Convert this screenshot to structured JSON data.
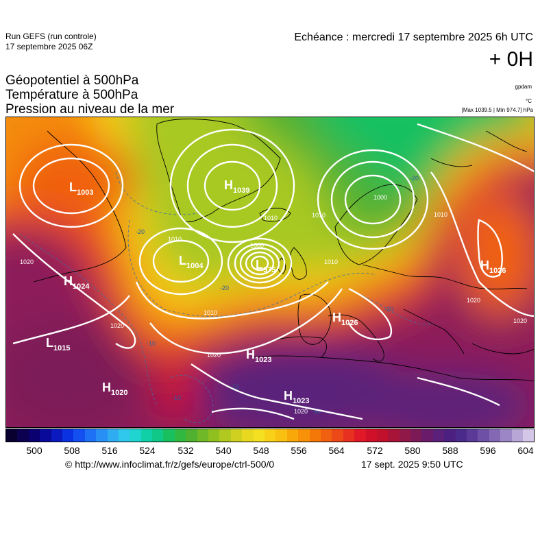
{
  "header": {
    "run_name": "Run GEFS (run controle)",
    "run_date": "17 septembre 2025 06Z",
    "echeance": "Echéance : mercredi 17 septembre 2025 6h UTC",
    "offset": "+ 0H"
  },
  "titles": {
    "line1": "Géopotentiel à 500hPa",
    "line2": "Température à 500hPa",
    "line3": "Pression au niveau de la mer"
  },
  "units": {
    "geopotential": "gpdam",
    "temperature": "°C",
    "maxmin": "[Max 1039.5 | Min 974.7] hPa"
  },
  "map": {
    "pressure_systems": [
      {
        "type": "L",
        "value": "1003"
      },
      {
        "type": "H",
        "value": "1039"
      },
      {
        "type": "L",
        "value": "1004"
      },
      {
        "type": "L",
        "value": "975"
      },
      {
        "type": "H",
        "value": "1024"
      },
      {
        "type": "L",
        "value": "1015"
      },
      {
        "type": "H",
        "value": "1023"
      },
      {
        "type": "H",
        "value": "1020"
      },
      {
        "type": "H",
        "value": "1023"
      },
      {
        "type": "H",
        "value": "1026"
      },
      {
        "type": "H",
        "value": "1026"
      }
    ],
    "isobar_labels": [
      "1010",
      "1000",
      "1010",
      "1020",
      "1020",
      "1010",
      "1010",
      "1020",
      "1010",
      "1020",
      "1020",
      "1010",
      "1000",
      "1020"
    ],
    "temperature_labels": [
      "-20",
      "-20",
      "-20",
      "-20",
      "-10",
      "-10",
      "-10",
      "-10"
    ]
  },
  "colorbar": {
    "colors": [
      "#0a0030",
      "#0c0050",
      "#0a0070",
      "#0a0a9a",
      "#0a1abe",
      "#0a32e0",
      "#1450f0",
      "#1e70f4",
      "#2890f4",
      "#30acf0",
      "#30c8ec",
      "#20d4d0",
      "#10d0a8",
      "#10c888",
      "#18c060",
      "#30b840",
      "#50b030",
      "#70b828",
      "#90c020",
      "#b0c820",
      "#d0d020",
      "#e8d820",
      "#f4e020",
      "#f8d018",
      "#f8c010",
      "#f8a808",
      "#f89008",
      "#f47808",
      "#f06010",
      "#ec4818",
      "#e83020",
      "#e01828",
      "#d01028",
      "#c0102c",
      "#a81438",
      "#901848",
      "#7c1a58",
      "#6a1c6a",
      "#5a207a",
      "#4c2080",
      "#4a2a8a",
      "#5a3a96",
      "#6e50a6",
      "#8468b4",
      "#9c86c6",
      "#b8a6d6",
      "#d4c6e6"
    ],
    "ticks": [
      "500",
      "508",
      "516",
      "524",
      "532",
      "540",
      "548",
      "556",
      "564",
      "572",
      "580",
      "588",
      "596",
      "604"
    ]
  },
  "footer": {
    "url": "© http://www.infoclimat.fr/z/gefs/europe/ctrl-500/0",
    "issued": "17 sept. 2025  9:50 UTC"
  }
}
